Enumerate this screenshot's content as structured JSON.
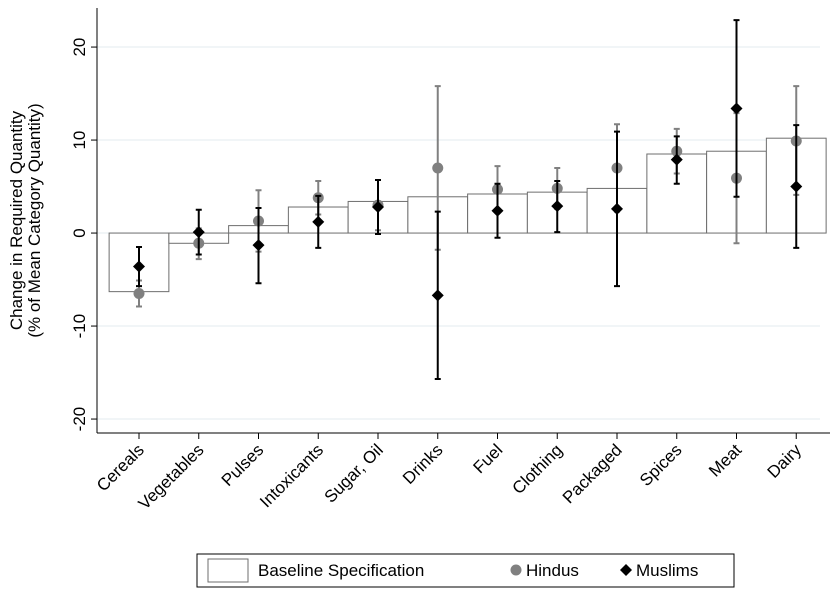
{
  "chart_data": {
    "type": "bar-errorbar",
    "y_label": [
      "Change in Required Quantity",
      "(% of Mean Category Quantity)"
    ],
    "categories": [
      "Cereals",
      "Vegetables",
      "Pulses",
      "Intoxicants",
      "Sugar, Oil",
      "Drinks",
      "Fuel",
      "Clothing",
      "Packaged",
      "Spices",
      "Meat",
      "Dairy"
    ],
    "ylim": [
      -21.5,
      24.2
    ],
    "yticks": [
      -20,
      -10,
      0,
      10,
      20
    ],
    "grid": true,
    "series": [
      {
        "name": "Baseline Specification",
        "marker": "bar",
        "color": "#ffffff",
        "values": [
          -6.3,
          -1.1,
          0.8,
          2.8,
          3.4,
          3.9,
          4.2,
          4.4,
          4.8,
          8.5,
          8.8,
          10.2
        ]
      },
      {
        "name": "Hindus",
        "marker": "circle",
        "color": "#808080",
        "values": [
          -6.5,
          -1.1,
          1.3,
          3.8,
          3.0,
          7.0,
          4.7,
          4.8,
          7.0,
          8.8,
          5.9,
          9.9
        ],
        "low": [
          -7.9,
          -2.8,
          -2.0,
          2.0,
          0.3,
          -1.8,
          2.2,
          2.6,
          2.3,
          6.4,
          -1.1,
          4.1
        ],
        "high": [
          -5.1,
          0.5,
          4.6,
          5.6,
          5.7,
          15.8,
          7.2,
          7.0,
          11.7,
          11.2,
          12.9,
          15.8
        ]
      },
      {
        "name": "Muslims",
        "marker": "diamond",
        "color": "#000000",
        "values": [
          -3.6,
          0.1,
          -1.3,
          1.2,
          2.8,
          -6.7,
          2.4,
          2.9,
          2.6,
          7.9,
          13.4,
          5.0
        ],
        "low": [
          -5.7,
          -2.3,
          -5.4,
          -1.6,
          -0.1,
          -15.7,
          -0.5,
          0.1,
          -5.7,
          5.3,
          3.9,
          -1.6
        ],
        "high": [
          -1.5,
          2.5,
          2.7,
          4.0,
          5.7,
          2.3,
          5.3,
          5.6,
          10.9,
          10.4,
          22.9,
          11.6
        ]
      }
    ]
  }
}
